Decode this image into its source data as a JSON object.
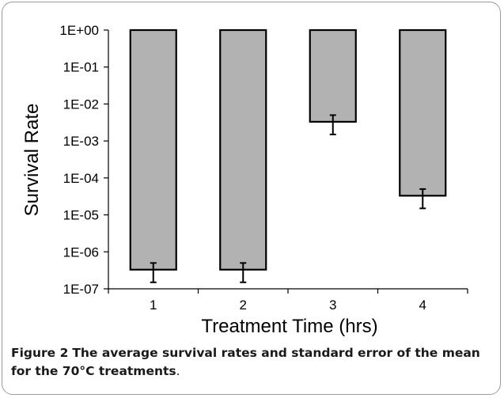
{
  "chart_data": {
    "type": "bar",
    "categories": [
      "1",
      "2",
      "3",
      "4"
    ],
    "values": [
      3.3e-07,
      3.3e-07,
      0.0033,
      3.3e-05
    ],
    "error_high": [
      5e-07,
      5e-07,
      0.005,
      5e-05
    ],
    "error_low": [
      1.5e-07,
      1.5e-07,
      0.0015,
      1.5e-05
    ],
    "bar_top": 1,
    "yscale": "log",
    "ylim": [
      1e-07,
      1
    ],
    "ytick_values": [
      1,
      0.1,
      0.01,
      0.001,
      0.0001,
      1e-05,
      1e-06,
      1e-07
    ],
    "ytick_labels": [
      "1E+00",
      "1E-01",
      "1E-02",
      "1E-03",
      "1E-04",
      "1E-05",
      "1E-06",
      "1E-07"
    ],
    "xlabel": "Treatment Time (hrs)",
    "ylabel": "Survival Rate",
    "bar_color": "#b2b2b2",
    "grid": false,
    "legend": "none"
  },
  "caption": {
    "label": "Figure 2",
    "text": "The average survival rates and standard error of the mean for the 70°C treatments",
    "end": "."
  }
}
